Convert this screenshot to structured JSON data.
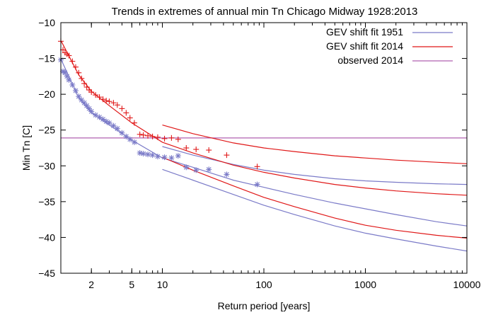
{
  "chart_data": {
    "type": "line",
    "title": "Trends in extremes of annual min Tn Chicago Midway 1928:2013",
    "xlabel": "Return period [years]",
    "ylabel": "Min Tn [C]",
    "xscale": "log",
    "xlim": [
      1,
      10000
    ],
    "ylim": [
      -45,
      -10
    ],
    "x_ticks": [
      2,
      5,
      10,
      100,
      1000,
      10000
    ],
    "x_tick_labels": [
      "2",
      "5",
      "10",
      "100",
      "1000",
      "10000"
    ],
    "y_ticks": [
      -10,
      -15,
      -20,
      -25,
      -30,
      -35,
      -40,
      -45
    ],
    "y_tick_labels": [
      "−10",
      "−15",
      "−20",
      "−25",
      "−30",
      "−35",
      "−40",
      "−45"
    ],
    "legend_position": "top-right",
    "legend": [
      {
        "label": "GEV shift fit 1951",
        "color": "#7b7bc8"
      },
      {
        "label": "GEV shift fit 2014",
        "color": "#e01818"
      },
      {
        "label": "observed 2014",
        "color": "#b060b0"
      }
    ],
    "fit_1951": {
      "color": "#7b7bc8",
      "central": {
        "x": [
          1.01,
          1.5,
          2,
          3,
          5,
          10,
          20,
          50,
          100,
          200,
          500,
          1000,
          2000,
          5000,
          10000
        ],
        "y": [
          -15.2,
          -20.5,
          -22.6,
          -24.3,
          -26.4,
          -28.9,
          -30.2,
          -32.0,
          -33.0,
          -34.0,
          -35.2,
          -36.0,
          -36.8,
          -37.8,
          -38.4
        ]
      },
      "upper": {
        "x": [
          10,
          20,
          50,
          100,
          200,
          500,
          1000,
          2000,
          5000,
          10000
        ],
        "y": [
          -27.3,
          -28.5,
          -29.8,
          -30.6,
          -31.2,
          -31.8,
          -32.1,
          -32.3,
          -32.5,
          -32.6
        ]
      },
      "lower": {
        "x": [
          10,
          20,
          50,
          100,
          200,
          500,
          1000,
          2000,
          5000,
          10000
        ],
        "y": [
          -30.5,
          -32.0,
          -34.0,
          -35.5,
          -36.8,
          -38.4,
          -39.4,
          -40.2,
          -41.2,
          -41.9
        ]
      }
    },
    "fit_2014": {
      "color": "#e01818",
      "central": {
        "x": [
          1.01,
          1.5,
          2,
          3,
          5,
          10,
          20,
          50,
          100,
          200,
          500,
          1000,
          2000,
          5000,
          10000
        ],
        "y": [
          -12.6,
          -17.3,
          -19.6,
          -21.6,
          -24.0,
          -26.7,
          -28.2,
          -29.9,
          -30.9,
          -31.7,
          -32.6,
          -33.1,
          -33.5,
          -33.9,
          -34.1
        ]
      },
      "upper": {
        "x": [
          10,
          20,
          50,
          100,
          200,
          500,
          1000,
          2000,
          5000,
          10000
        ],
        "y": [
          -24.3,
          -25.5,
          -26.8,
          -27.5,
          -28.0,
          -28.6,
          -28.9,
          -29.2,
          -29.5,
          -29.7
        ]
      },
      "lower": {
        "x": [
          10,
          20,
          50,
          100,
          200,
          500,
          1000,
          2000,
          5000,
          10000
        ],
        "y": [
          -28.8,
          -30.6,
          -32.8,
          -34.4,
          -35.7,
          -37.3,
          -38.3,
          -39.0,
          -39.7,
          -40.1
        ]
      }
    },
    "observed_2014": {
      "y": -26.1,
      "color": "#b060b0"
    },
    "observations_1951": {
      "color": "#7b7bc8",
      "marker": "*",
      "points": [
        [
          1.0,
          -15.2
        ],
        [
          1.05,
          -16.8
        ],
        [
          1.1,
          -17.0
        ],
        [
          1.15,
          -17.5
        ],
        [
          1.2,
          -18.0
        ],
        [
          1.3,
          -18.7
        ],
        [
          1.4,
          -19.5
        ],
        [
          1.5,
          -20.3
        ],
        [
          1.6,
          -20.8
        ],
        [
          1.7,
          -21.2
        ],
        [
          1.8,
          -21.6
        ],
        [
          1.9,
          -22.0
        ],
        [
          2.0,
          -22.4
        ],
        [
          2.2,
          -22.9
        ],
        [
          2.4,
          -23.2
        ],
        [
          2.6,
          -23.5
        ],
        [
          2.8,
          -23.8
        ],
        [
          3.0,
          -24.0
        ],
        [
          3.3,
          -24.4
        ],
        [
          3.6,
          -24.8
        ],
        [
          4.0,
          -25.4
        ],
        [
          4.4,
          -25.9
        ],
        [
          4.8,
          -26.3
        ],
        [
          5.3,
          -26.7
        ],
        [
          6.0,
          -28.2
        ],
        [
          6.5,
          -28.3
        ],
        [
          7.2,
          -28.4
        ],
        [
          8.0,
          -28.5
        ],
        [
          9.0,
          -28.7
        ],
        [
          10.5,
          -28.8
        ],
        [
          12.3,
          -28.9
        ],
        [
          14.3,
          -28.6
        ],
        [
          17.2,
          -30.2
        ],
        [
          21.5,
          -30.6
        ],
        [
          28.7,
          -30.5
        ],
        [
          43.0,
          -31.2
        ],
        [
          86.0,
          -32.6
        ]
      ]
    },
    "observations_2014": {
      "color": "#e01818",
      "marker": "+",
      "points": [
        [
          1.0,
          -12.6
        ],
        [
          1.05,
          -13.8
        ],
        [
          1.1,
          -14.2
        ],
        [
          1.15,
          -14.4
        ],
        [
          1.2,
          -14.6
        ],
        [
          1.3,
          -15.4
        ],
        [
          1.4,
          -16.2
        ],
        [
          1.5,
          -17.0
        ],
        [
          1.6,
          -17.8
        ],
        [
          1.7,
          -18.5
        ],
        [
          1.8,
          -19.0
        ],
        [
          1.9,
          -19.4
        ],
        [
          2.0,
          -19.7
        ],
        [
          2.2,
          -20.1
        ],
        [
          2.4,
          -20.4
        ],
        [
          2.6,
          -20.7
        ],
        [
          2.8,
          -20.9
        ],
        [
          3.0,
          -21.0
        ],
        [
          3.3,
          -21.2
        ],
        [
          3.6,
          -21.5
        ],
        [
          4.0,
          -22.0
        ],
        [
          4.4,
          -22.6
        ],
        [
          4.8,
          -23.3
        ],
        [
          5.3,
          -24.0
        ],
        [
          6.0,
          -25.6
        ],
        [
          6.5,
          -25.7
        ],
        [
          7.2,
          -25.8
        ],
        [
          8.0,
          -25.9
        ],
        [
          9.0,
          -26.0
        ],
        [
          10.5,
          -26.2
        ],
        [
          12.3,
          -26.1
        ],
        [
          14.3,
          -26.3
        ],
        [
          17.2,
          -27.5
        ],
        [
          21.5,
          -27.7
        ],
        [
          28.7,
          -27.8
        ],
        [
          43.0,
          -28.5
        ],
        [
          86.0,
          -30.1
        ]
      ]
    }
  }
}
